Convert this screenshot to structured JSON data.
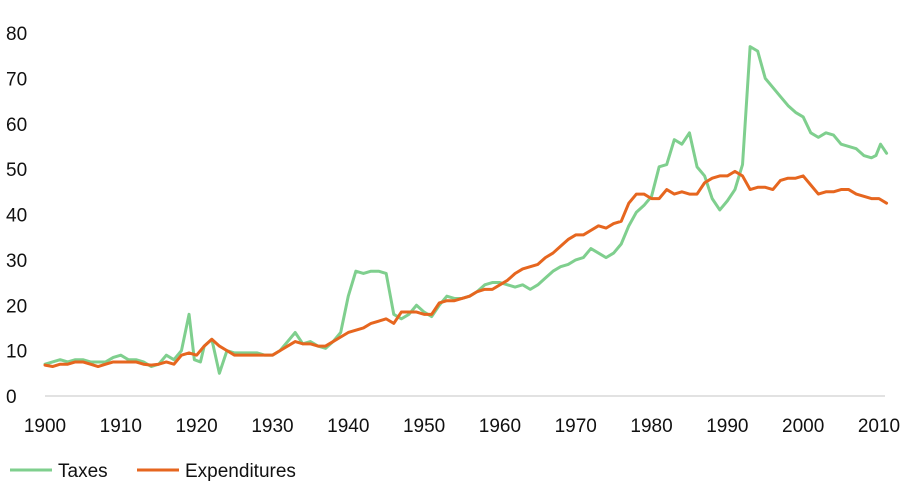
{
  "chart_data": {
    "type": "line",
    "title": "",
    "xlabel": "",
    "ylabel": "",
    "xlim": [
      1900,
      2010
    ],
    "ylim": [
      0,
      80
    ],
    "grid": false,
    "legend_placement": "bottom-left",
    "x_ticks": [
      "1900",
      "1910",
      "1920",
      "1930",
      "1940",
      "1950",
      "1960",
      "1970",
      "1980",
      "1990",
      "2000",
      "2010"
    ],
    "y_ticks": [
      "0",
      "10",
      "20",
      "30",
      "40",
      "50",
      "60",
      "70",
      "80"
    ],
    "series": [
      {
        "name": "Taxes",
        "color": "#7fcf8e",
        "points": [
          [
            1900,
            7.0
          ],
          [
            1901,
            7.5
          ],
          [
            1902,
            8.0
          ],
          [
            1903,
            7.5
          ],
          [
            1904,
            8.0
          ],
          [
            1905,
            8.0
          ],
          [
            1906,
            7.5
          ],
          [
            1907,
            7.5
          ],
          [
            1908,
            7.5
          ],
          [
            1909,
            8.5
          ],
          [
            1910,
            9.0
          ],
          [
            1911,
            8.0
          ],
          [
            1912,
            8.0
          ],
          [
            1913,
            7.5
          ],
          [
            1914,
            6.5
          ],
          [
            1915,
            7.0
          ],
          [
            1916,
            9.0
          ],
          [
            1917,
            8.0
          ],
          [
            1918,
            10.0
          ],
          [
            1919,
            18.0
          ],
          [
            1919.7,
            8.0
          ],
          [
            1920.5,
            7.5
          ],
          [
            1921,
            11.0
          ],
          [
            1922,
            12.5
          ],
          [
            1923,
            5.0
          ],
          [
            1924,
            10.0
          ],
          [
            1925,
            9.5
          ],
          [
            1926,
            9.5
          ],
          [
            1927,
            9.5
          ],
          [
            1928,
            9.5
          ],
          [
            1929,
            9.0
          ],
          [
            1930,
            9.0
          ],
          [
            1931,
            10.0
          ],
          [
            1932,
            12.0
          ],
          [
            1933,
            14.0
          ],
          [
            1934,
            11.5
          ],
          [
            1935,
            12.0
          ],
          [
            1936,
            11.0
          ],
          [
            1937,
            10.5
          ],
          [
            1938,
            12.0
          ],
          [
            1939,
            14.0
          ],
          [
            1940,
            22.0
          ],
          [
            1941,
            27.5
          ],
          [
            1942,
            27.0
          ],
          [
            1943,
            27.5
          ],
          [
            1944,
            27.5
          ],
          [
            1945,
            27.0
          ],
          [
            1946,
            18.0
          ],
          [
            1947,
            17.0
          ],
          [
            1948,
            18.0
          ],
          [
            1949,
            20.0
          ],
          [
            1950,
            18.5
          ],
          [
            1951,
            17.5
          ],
          [
            1952,
            20.0
          ],
          [
            1953,
            22.0
          ],
          [
            1954,
            21.5
          ],
          [
            1955,
            21.5
          ],
          [
            1956,
            22.0
          ],
          [
            1957,
            23.0
          ],
          [
            1958,
            24.5
          ],
          [
            1959,
            25.0
          ],
          [
            1960,
            25.0
          ],
          [
            1961,
            24.5
          ],
          [
            1962,
            24.0
          ],
          [
            1963,
            24.5
          ],
          [
            1964,
            23.5
          ],
          [
            1965,
            24.5
          ],
          [
            1966,
            26.0
          ],
          [
            1967,
            27.5
          ],
          [
            1968,
            28.5
          ],
          [
            1969,
            29.0
          ],
          [
            1970,
            30.0
          ],
          [
            1971,
            30.5
          ],
          [
            1972,
            32.5
          ],
          [
            1973,
            31.5
          ],
          [
            1974,
            30.5
          ],
          [
            1975,
            31.5
          ],
          [
            1976,
            33.5
          ],
          [
            1977,
            37.5
          ],
          [
            1978,
            40.5
          ],
          [
            1979,
            42.0
          ],
          [
            1980,
            44.0
          ],
          [
            1981,
            50.5
          ],
          [
            1982,
            51.0
          ],
          [
            1983,
            56.5
          ],
          [
            1984,
            55.5
          ],
          [
            1985,
            58.0
          ],
          [
            1986,
            50.5
          ],
          [
            1987,
            48.5
          ],
          [
            1988,
            43.5
          ],
          [
            1989,
            41.0
          ],
          [
            1990,
            43.0
          ],
          [
            1991,
            45.5
          ],
          [
            1992,
            51.0
          ],
          [
            1993,
            77.0
          ],
          [
            1994,
            76.0
          ],
          [
            1995,
            70.0
          ],
          [
            1996,
            68.0
          ],
          [
            1997,
            66.0
          ],
          [
            1998,
            64.0
          ],
          [
            1999,
            62.5
          ],
          [
            2000,
            61.5
          ],
          [
            2001,
            58.0
          ],
          [
            2002,
            57.0
          ],
          [
            2003,
            58.0
          ],
          [
            2004,
            57.5
          ],
          [
            2005,
            55.5
          ],
          [
            2006,
            55.0
          ],
          [
            2007,
            54.5
          ],
          [
            2008,
            53.0
          ],
          [
            2009,
            52.5
          ],
          [
            2009.6,
            53.0
          ],
          [
            2010.2,
            55.5
          ],
          [
            2011,
            53.5
          ]
        ]
      },
      {
        "name": "Expenditures",
        "color": "#e6661f",
        "points": [
          [
            1900,
            6.8
          ],
          [
            1901,
            6.5
          ],
          [
            1902,
            7.0
          ],
          [
            1903,
            7.0
          ],
          [
            1904,
            7.5
          ],
          [
            1905,
            7.5
          ],
          [
            1906,
            7.0
          ],
          [
            1907,
            6.5
          ],
          [
            1908,
            7.0
          ],
          [
            1909,
            7.5
          ],
          [
            1910,
            7.5
          ],
          [
            1911,
            7.5
          ],
          [
            1912,
            7.5
          ],
          [
            1913,
            7.0
          ],
          [
            1914,
            6.8
          ],
          [
            1915,
            7.0
          ],
          [
            1916,
            7.5
          ],
          [
            1917,
            7.0
          ],
          [
            1918,
            9.0
          ],
          [
            1919,
            9.5
          ],
          [
            1920,
            9.0
          ],
          [
            1921,
            11.0
          ],
          [
            1922,
            12.5
          ],
          [
            1923,
            11.0
          ],
          [
            1924,
            10.0
          ],
          [
            1925,
            9.0
          ],
          [
            1926,
            9.0
          ],
          [
            1927,
            9.0
          ],
          [
            1928,
            9.0
          ],
          [
            1929,
            9.0
          ],
          [
            1930,
            9.0
          ],
          [
            1931,
            10.0
          ],
          [
            1932,
            11.0
          ],
          [
            1933,
            12.0
          ],
          [
            1934,
            11.5
          ],
          [
            1935,
            11.5
          ],
          [
            1936,
            11.0
          ],
          [
            1937,
            11.0
          ],
          [
            1938,
            12.0
          ],
          [
            1939,
            13.0
          ],
          [
            1940,
            14.0
          ],
          [
            1941,
            14.5
          ],
          [
            1942,
            15.0
          ],
          [
            1943,
            16.0
          ],
          [
            1944,
            16.5
          ],
          [
            1945,
            17.0
          ],
          [
            1946,
            16.0
          ],
          [
            1947,
            18.5
          ],
          [
            1948,
            18.5
          ],
          [
            1949,
            18.5
          ],
          [
            1950,
            18.0
          ],
          [
            1951,
            18.0
          ],
          [
            1952,
            20.5
          ],
          [
            1953,
            21.0
          ],
          [
            1954,
            21.0
          ],
          [
            1955,
            21.5
          ],
          [
            1956,
            22.0
          ],
          [
            1957,
            23.0
          ],
          [
            1958,
            23.5
          ],
          [
            1959,
            23.5
          ],
          [
            1960,
            24.5
          ],
          [
            1961,
            25.5
          ],
          [
            1962,
            27.0
          ],
          [
            1963,
            28.0
          ],
          [
            1964,
            28.5
          ],
          [
            1965,
            29.0
          ],
          [
            1966,
            30.5
          ],
          [
            1967,
            31.5
          ],
          [
            1968,
            33.0
          ],
          [
            1969,
            34.5
          ],
          [
            1970,
            35.5
          ],
          [
            1971,
            35.5
          ],
          [
            1972,
            36.5
          ],
          [
            1973,
            37.5
          ],
          [
            1974,
            37.0
          ],
          [
            1975,
            38.0
          ],
          [
            1976,
            38.5
          ],
          [
            1977,
            42.5
          ],
          [
            1978,
            44.5
          ],
          [
            1979,
            44.5
          ],
          [
            1980,
            43.5
          ],
          [
            1981,
            43.5
          ],
          [
            1982,
            45.5
          ],
          [
            1983,
            44.5
          ],
          [
            1984,
            45.0
          ],
          [
            1985,
            44.5
          ],
          [
            1986,
            44.5
          ],
          [
            1987,
            47.0
          ],
          [
            1988,
            48.0
          ],
          [
            1989,
            48.5
          ],
          [
            1990,
            48.5
          ],
          [
            1991,
            49.5
          ],
          [
            1992,
            48.5
          ],
          [
            1993,
            45.5
          ],
          [
            1994,
            46.0
          ],
          [
            1995,
            46.0
          ],
          [
            1996,
            45.5
          ],
          [
            1997,
            47.5
          ],
          [
            1998,
            48.0
          ],
          [
            1999,
            48.0
          ],
          [
            2000,
            48.5
          ],
          [
            2001,
            46.5
          ],
          [
            2002,
            44.5
          ],
          [
            2003,
            45.0
          ],
          [
            2004,
            45.0
          ],
          [
            2005,
            45.5
          ],
          [
            2006,
            45.5
          ],
          [
            2007,
            44.5
          ],
          [
            2008,
            44.0
          ],
          [
            2009,
            43.5
          ],
          [
            2010,
            43.5
          ],
          [
            2011,
            42.5
          ]
        ]
      }
    ]
  }
}
